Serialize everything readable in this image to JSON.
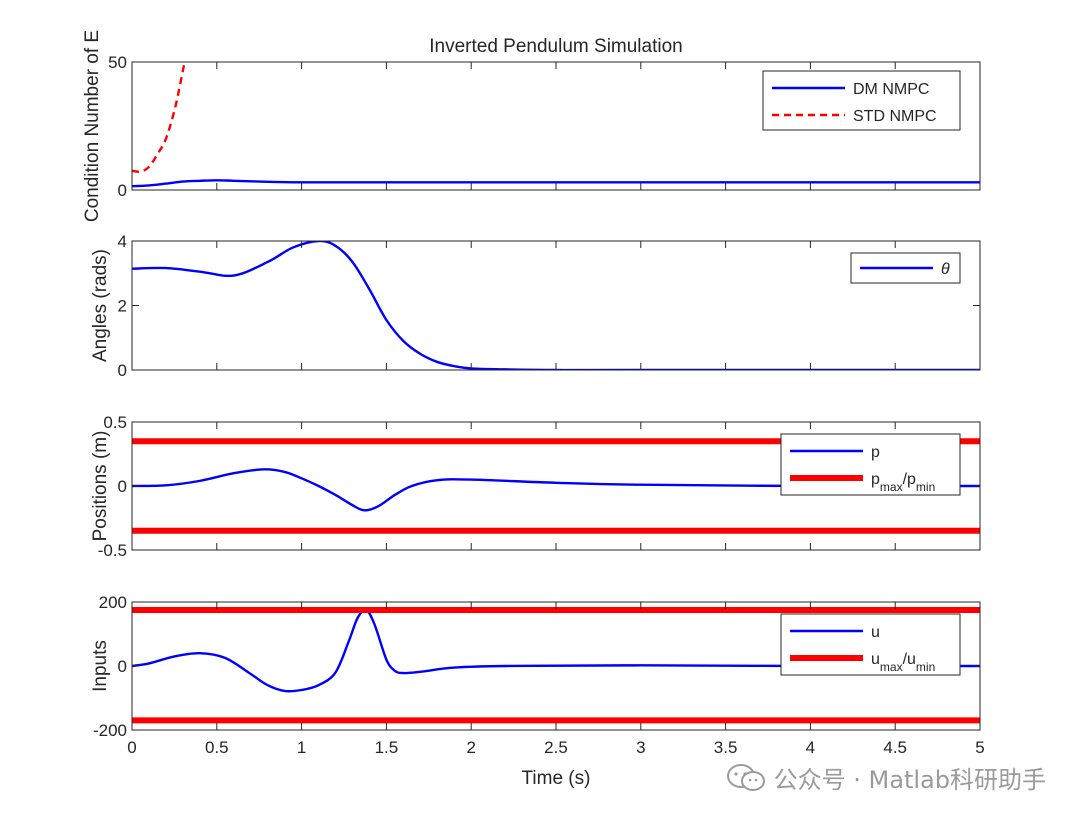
{
  "chart_data": [
    {
      "type": "line",
      "title": "Inverted Pendulum Simulation",
      "ylabel": "Condition Number of E",
      "xlim": [
        0,
        5
      ],
      "ylim": [
        0,
        50
      ],
      "yticks": [
        0,
        50
      ],
      "series": [
        {
          "name": "DM NMPC",
          "color": "#0000ff",
          "style": "solid",
          "x": [
            0,
            0.1,
            0.2,
            0.3,
            0.4,
            0.5,
            0.6,
            0.8,
            1.0,
            1.5,
            2.0,
            3.0,
            4.0,
            5.0
          ],
          "y": [
            1.5,
            1.8,
            2.5,
            3.3,
            3.6,
            3.8,
            3.6,
            3.2,
            3.0,
            3.0,
            3.0,
            3.0,
            3.0,
            3.0
          ]
        },
        {
          "name": "STD NMPC",
          "color": "#ff0000",
          "style": "dashed",
          "x": [
            0,
            0.05,
            0.1,
            0.15,
            0.2,
            0.25,
            0.28,
            0.31
          ],
          "y": [
            7.5,
            7.2,
            9,
            14,
            20,
            31,
            40,
            50
          ]
        }
      ]
    },
    {
      "type": "line",
      "ylabel": "Angles (rads)",
      "xlim": [
        0,
        5
      ],
      "ylim": [
        0,
        4
      ],
      "yticks": [
        0,
        2,
        4
      ],
      "series": [
        {
          "name": "θ",
          "color": "#0000ff",
          "style": "solid",
          "x": [
            0,
            0.2,
            0.4,
            0.6,
            0.8,
            0.95,
            1.1,
            1.2,
            1.3,
            1.4,
            1.5,
            1.6,
            1.7,
            1.8,
            1.9,
            2.0,
            2.2,
            2.5,
            3.0,
            4.0,
            5.0
          ],
          "y": [
            3.14,
            3.16,
            3.05,
            2.93,
            3.35,
            3.8,
            4.0,
            3.85,
            3.35,
            2.5,
            1.55,
            0.9,
            0.5,
            0.25,
            0.12,
            0.05,
            0.02,
            0.0,
            0.0,
            0.0,
            0.0
          ]
        }
      ]
    },
    {
      "type": "line",
      "ylabel": "Positions (m)",
      "xlim": [
        0,
        5
      ],
      "ylim": [
        -0.5,
        0.5
      ],
      "yticks": [
        -0.5,
        0,
        0.5
      ],
      "series": [
        {
          "name": "p",
          "color": "#0000ff",
          "style": "solid",
          "x": [
            0,
            0.2,
            0.4,
            0.6,
            0.78,
            0.9,
            1.0,
            1.1,
            1.2,
            1.3,
            1.37,
            1.45,
            1.55,
            1.65,
            1.8,
            2.0,
            2.5,
            3.0,
            4.0,
            5.0
          ],
          "y": [
            0,
            0.005,
            0.04,
            0.1,
            0.13,
            0.11,
            0.06,
            0.0,
            -0.07,
            -0.15,
            -0.19,
            -0.16,
            -0.07,
            0.0,
            0.045,
            0.05,
            0.025,
            0.01,
            0.0,
            0.0
          ]
        },
        {
          "name": "pmax/pmin",
          "color": "#ff0000",
          "style": "bound",
          "x": [
            0,
            5
          ],
          "y": [
            0.35,
            0.35
          ],
          "y2": [
            -0.35,
            -0.35
          ]
        }
      ]
    },
    {
      "type": "line",
      "ylabel": "Inputs",
      "xlabel": "Time (s)",
      "xlim": [
        0,
        5
      ],
      "ylim": [
        -200,
        200
      ],
      "yticks": [
        -200,
        0,
        200
      ],
      "xticks": [
        0,
        0.5,
        1,
        1.5,
        2,
        2.5,
        3,
        3.5,
        4,
        4.5,
        5
      ],
      "xticklabels": [
        "0",
        "0.5",
        "1",
        "1.5",
        "2",
        "2.5",
        "3",
        "3.5",
        "4",
        "4.5",
        "5"
      ],
      "series": [
        {
          "name": "u",
          "color": "#0000ff",
          "style": "solid",
          "x": [
            0,
            0.1,
            0.25,
            0.4,
            0.55,
            0.7,
            0.8,
            0.9,
            1.0,
            1.1,
            1.2,
            1.28,
            1.33,
            1.38,
            1.43,
            1.5,
            1.55,
            1.6,
            1.7,
            1.9,
            2.2,
            3.0,
            4.0,
            5.0
          ],
          "y": [
            0,
            8,
            30,
            40,
            25,
            -25,
            -60,
            -78,
            -75,
            -60,
            -20,
            80,
            150,
            175,
            130,
            20,
            -15,
            -22,
            -18,
            -5,
            0,
            2,
            0,
            0
          ]
        },
        {
          "name": "umax/umin",
          "color": "#ff0000",
          "style": "bound",
          "x": [
            0,
            5
          ],
          "y": [
            175,
            175
          ],
          "y2": [
            -170,
            -170
          ]
        }
      ]
    }
  ],
  "legends": [
    [
      {
        "label": "DM NMPC"
      },
      {
        "label": "STD NMPC"
      }
    ],
    [
      {
        "label": "θ"
      }
    ],
    [
      {
        "label": "p"
      },
      {
        "label": "p",
        "sub1": "max",
        "mid": "/p",
        "sub2": "min"
      }
    ],
    [
      {
        "label": "u"
      },
      {
        "label": "u",
        "sub1": "max",
        "mid": "/u",
        "sub2": "min"
      }
    ]
  ],
  "watermark": {
    "text": "公众号 · Matlab科研助手"
  }
}
